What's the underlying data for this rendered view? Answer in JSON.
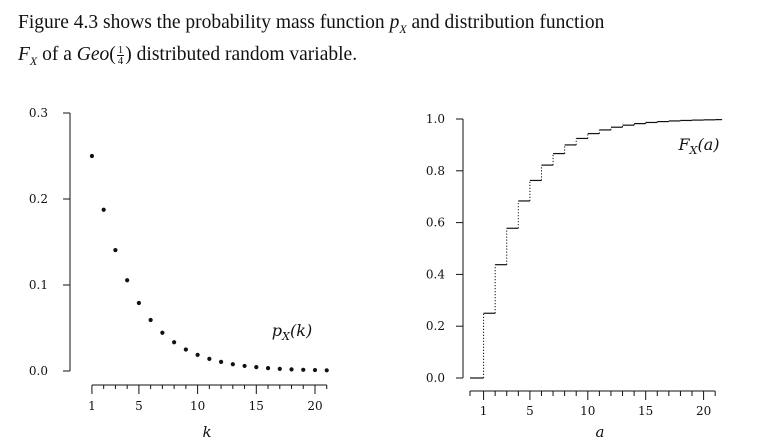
{
  "caption": {
    "prefix": "Figure 4.3 shows the probability mass function ",
    "pmf_symbol": "p",
    "pmf_sub": "X",
    "middle": " and distribution function",
    "cdf_symbol": "F",
    "cdf_sub": "X",
    "of_a": " of a ",
    "dist_name": "Geo",
    "frac_num": "1",
    "frac_den": "4",
    "suffix": " distributed random variable."
  },
  "chart_data": [
    {
      "type": "scatter",
      "annotation": "pX(k)",
      "xlabel": "k",
      "ylabel": "",
      "xlim": [
        0,
        21
      ],
      "ylim": [
        0,
        0.3
      ],
      "xticks": [
        1,
        5,
        10,
        15,
        20
      ],
      "yticks": [
        0.0,
        0.1,
        0.2,
        0.3
      ],
      "ytick_labels": [
        "0.0",
        "0.1",
        "0.2",
        "0.3"
      ],
      "x": [
        1,
        2,
        3,
        4,
        5,
        6,
        7,
        8,
        9,
        10,
        11,
        12,
        13,
        14,
        15,
        16,
        17,
        18,
        19,
        20,
        21
      ],
      "y": [
        0.25,
        0.1875,
        0.1406,
        0.1055,
        0.0791,
        0.0593,
        0.0445,
        0.0334,
        0.025,
        0.0188,
        0.0141,
        0.0106,
        0.0079,
        0.0059,
        0.0045,
        0.0033,
        0.0025,
        0.0019,
        0.0014,
        0.0011,
        0.0008
      ],
      "grid": false
    },
    {
      "type": "line",
      "step": true,
      "annotation": "FX(a)",
      "xlabel": "a",
      "ylabel": "",
      "xlim": [
        -1,
        21
      ],
      "ylim": [
        0,
        1.0
      ],
      "xticks": [
        1,
        5,
        10,
        15,
        20
      ],
      "yticks": [
        0.0,
        0.2,
        0.4,
        0.6,
        0.8,
        1.0
      ],
      "ytick_labels": [
        "0.0",
        "0.2",
        "0.4",
        "0.6",
        "0.8",
        "1.0"
      ],
      "x": [
        1,
        2,
        3,
        4,
        5,
        6,
        7,
        8,
        9,
        10,
        11,
        12,
        13,
        14,
        15,
        16,
        17,
        18,
        19,
        20,
        21
      ],
      "y": [
        0.25,
        0.4375,
        0.5781,
        0.6836,
        0.7627,
        0.822,
        0.8665,
        0.8999,
        0.9249,
        0.9437,
        0.9578,
        0.9683,
        0.9762,
        0.9822,
        0.9866,
        0.99,
        0.9925,
        0.9944,
        0.9958,
        0.9968,
        0.9976
      ],
      "grid": false
    }
  ]
}
